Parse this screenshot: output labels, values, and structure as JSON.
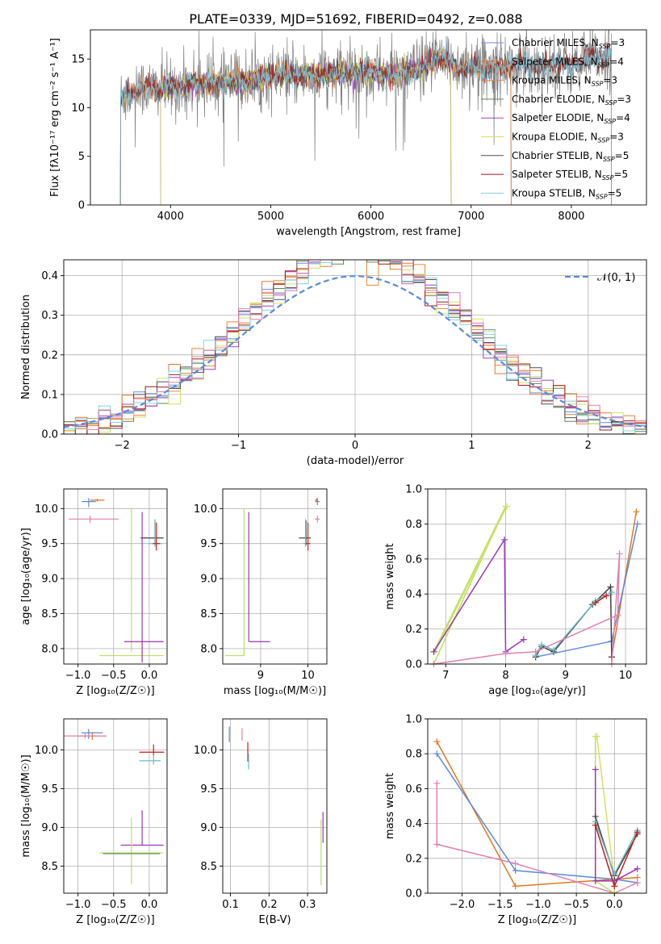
{
  "figure_title": "PLATE=0339, MJD=51692, FIBERID=0492, z=0.088",
  "colors": {
    "Chabrier MILES": "#6a8fd6",
    "Salpeter MILES": "#e07a2c",
    "Kroupa MILES": "#e8863a",
    "Chabrier ELODIE": "#5a8a5a",
    "Salpeter ELODIE": "#a040c0",
    "Kroupa ELODIE": "#d8e060",
    "Chabrier STELIB": "#505050",
    "Salpeter STELIB": "#a01818",
    "Kroupa STELIB": "#7fd3e8",
    "raw": "#7f7f7f",
    "gauss": "#5b8bd8",
    "pink": "#e080b0",
    "lime": "#b8e060",
    "purple": "#9838b8",
    "orange": "#e07820",
    "blue": "#5c8ad8",
    "dark": "#404040",
    "teal": "#6abcc0",
    "red": "#c02020"
  },
  "chart_data": [
    {
      "id": "spectrum",
      "type": "line",
      "title": "PLATE=0339, MJD=51692, FIBERID=0492, z=0.088",
      "xlabel": "wavelength [Angstrom, rest frame]",
      "ylabel": "Flux [fλ10⁻¹⁷ erg cm⁻² s⁻¹ A⁻¹]",
      "xlim": [
        3200,
        8750
      ],
      "ylim": [
        0,
        18
      ],
      "xticks": [
        4000,
        5000,
        6000,
        7000,
        8000
      ],
      "yticks": [
        0,
        5,
        10,
        15
      ],
      "grid": false,
      "legend_position": "top-right",
      "legend": [
        {
          "label": "Chabrier MILES, N",
          "sub": "SSP",
          "tail": "=3",
          "color_key": "Chabrier MILES"
        },
        {
          "label": "Salpeter MILES, N",
          "sub": "SSP",
          "tail": "=4",
          "color_key": "Salpeter MILES"
        },
        {
          "label": "Kroupa MILES, N",
          "sub": "SSP",
          "tail": "=3",
          "color_key": "Kroupa MILES"
        },
        {
          "label": "Chabrier ELODIE, N",
          "sub": "SSP",
          "tail": "=3",
          "color_key": "Chabrier ELODIE"
        },
        {
          "label": "Salpeter ELODIE, N",
          "sub": "SSP",
          "tail": "=4",
          "color_key": "Salpeter ELODIE"
        },
        {
          "label": "Kroupa ELODIE, N",
          "sub": "SSP",
          "tail": "=3",
          "color_key": "Kroupa ELODIE"
        },
        {
          "label": "Chabrier STELIB, N",
          "sub": "SSP",
          "tail": "=5",
          "color_key": "Chabrier STELIB"
        },
        {
          "label": "Salpeter STELIB, N",
          "sub": "SSP",
          "tail": "=5",
          "color_key": "Salpeter STELIB"
        },
        {
          "label": "Kroupa STELIB, N",
          "sub": "SSP",
          "tail": "=5",
          "color_key": "Kroupa STELIB"
        }
      ],
      "continuum": [
        [
          3500,
          11
        ],
        [
          3700,
          12
        ],
        [
          4000,
          12
        ],
        [
          4200,
          12.5
        ],
        [
          4500,
          12.5
        ],
        [
          4800,
          12.8
        ],
        [
          5000,
          13.2
        ],
        [
          5200,
          13.4
        ],
        [
          5500,
          13.4
        ],
        [
          5800,
          13.6
        ],
        [
          6000,
          13.5
        ],
        [
          6300,
          13.4
        ],
        [
          6500,
          14.0
        ],
        [
          6600,
          14.6
        ],
        [
          6700,
          15.2
        ],
        [
          6800,
          14.4
        ],
        [
          7000,
          14.2
        ],
        [
          7200,
          14.2
        ],
        [
          7400,
          14.4
        ],
        [
          7800,
          14.5
        ],
        [
          8000,
          14.4
        ],
        [
          8200,
          15.0
        ],
        [
          8400,
          15.5
        ]
      ],
      "model_ranges": {
        "Chabrier MILES": [
          3500,
          7400
        ],
        "Salpeter MILES": [
          3500,
          7400
        ],
        "Kroupa MILES": [
          3500,
          7400
        ],
        "Chabrier ELODIE": [
          3900,
          6800
        ],
        "Salpeter ELODIE": [
          3900,
          6800
        ],
        "Kroupa ELODIE": [
          3900,
          6800
        ],
        "Chabrier STELIB": [
          3500,
          8400
        ],
        "Salpeter STELIB": [
          3500,
          8400
        ],
        "Kroupa STELIB": [
          3500,
          8400
        ]
      },
      "data_range": [
        3500,
        8400
      ]
    },
    {
      "id": "residuals",
      "type": "bar",
      "xlabel": "(data-model)/error",
      "ylabel": "Normed distribution",
      "xlim": [
        -2.5,
        2.5
      ],
      "ylim": [
        0,
        0.44
      ],
      "xticks": [
        -2,
        -1,
        0,
        1,
        2
      ],
      "yticks": [
        0.0,
        0.1,
        0.2,
        0.3,
        0.4
      ],
      "grid": true,
      "legend_position": "top-right",
      "legend": [
        {
          "label": "𝒩(0, 1)",
          "color_key": "gauss",
          "dash": true
        }
      ],
      "bin_width": 0.1,
      "series_colors": [
        "Chabrier MILES",
        "Salpeter MILES",
        "Kroupa MILES",
        "Chabrier ELODIE",
        "Salpeter ELODIE",
        "Kroupa ELODIE",
        "Chabrier STELIB",
        "Salpeter STELIB",
        "Kroupa STELIB",
        "pink"
      ]
    },
    {
      "id": "age_vs_Z",
      "type": "scatter",
      "xlabel": "Z [log₁₀(Z/Z☉)]",
      "ylabel": "age  [log₁₀(age/yr)]",
      "xlim": [
        -1.2,
        0.25
      ],
      "ylim": [
        7.78,
        10.28
      ],
      "xticks": [
        -1.0,
        -0.5,
        0.0
      ],
      "yticks": [
        8.0,
        8.5,
        9.0,
        9.5,
        10.0
      ],
      "grid": true,
      "points": [
        {
          "x": -0.85,
          "y": 10.1,
          "xerr": [
            0.1,
            0.1
          ],
          "yerr": [
            0.08,
            0.05
          ],
          "color_key": "blue"
        },
        {
          "x": -0.73,
          "y": 10.12,
          "xerr": [
            0.1,
            0.1
          ],
          "yerr": [
            0.02,
            0.02
          ],
          "color_key": "orange"
        },
        {
          "x": -0.83,
          "y": 9.85,
          "xerr": [
            0.3,
            0.4
          ],
          "yerr": [
            0.05,
            0.05
          ],
          "color_key": "pink"
        },
        {
          "x": -0.25,
          "y": 9.55,
          "xerr": [
            0.0,
            0.0
          ],
          "yerr": [
            1.6,
            0.45
          ],
          "color_key": "lime"
        },
        {
          "x": -0.25,
          "y": 7.9,
          "xerr": [
            0.45,
            0.45
          ],
          "yerr": [
            0.0,
            0.0
          ],
          "color_key": "lime"
        },
        {
          "x": -0.1,
          "y": 8.1,
          "xerr": [
            0.25,
            0.3
          ],
          "yerr": [
            0.3,
            1.85
          ],
          "color_key": "purple"
        },
        {
          "x": 0.08,
          "y": 9.58,
          "xerr": [
            0.2,
            0.12
          ],
          "yerr": [
            0.1,
            0.25
          ],
          "color_key": "dark"
        },
        {
          "x": 0.08,
          "y": 9.5,
          "xerr": [
            0.1,
            0.1
          ],
          "yerr": [
            0.05,
            0.35
          ],
          "color_key": "teal"
        },
        {
          "x": 0.1,
          "y": 9.5,
          "xerr": [
            0.05,
            0.05
          ],
          "yerr": [
            0.1,
            0.3
          ],
          "color_key": "red"
        }
      ]
    },
    {
      "id": "age_vs_mass",
      "type": "scatter",
      "xlabel": "mass [log₁₀(M/M☉)]",
      "xlim": [
        8.2,
        10.4
      ],
      "ylim": [
        7.78,
        10.28
      ],
      "xticks": [
        9,
        10
      ],
      "yticks": [
        8.0,
        8.5,
        9.0,
        9.5,
        10.0
      ],
      "grid": true,
      "points": [
        {
          "x": 8.65,
          "y": 7.9,
          "xerr": [
            0.4,
            0.0
          ],
          "yerr": [
            0.0,
            2.1
          ],
          "color_key": "lime"
        },
        {
          "x": 8.75,
          "y": 8.1,
          "xerr": [
            0.0,
            0.45
          ],
          "yerr": [
            0.0,
            1.85
          ],
          "color_key": "purple"
        },
        {
          "x": 9.96,
          "y": 9.58,
          "xerr": [
            0.15,
            0.1
          ],
          "yerr": [
            0.1,
            0.25
          ],
          "color_key": "dark"
        },
        {
          "x": 9.95,
          "y": 9.5,
          "xerr": [
            0.05,
            0.05
          ],
          "yerr": [
            0.05,
            0.35
          ],
          "color_key": "teal"
        },
        {
          "x": 10.0,
          "y": 9.5,
          "xerr": [
            0.05,
            0.05
          ],
          "yerr": [
            0.1,
            0.3
          ],
          "color_key": "red"
        },
        {
          "x": 10.2,
          "y": 10.1,
          "xerr": [
            0.05,
            0.05
          ],
          "yerr": [
            0.05,
            0.05
          ],
          "color_key": "blue"
        },
        {
          "x": 10.18,
          "y": 10.12,
          "xerr": [
            0.03,
            0.03
          ],
          "yerr": [
            0.02,
            0.02
          ],
          "color_key": "orange"
        },
        {
          "x": 10.2,
          "y": 9.85,
          "xerr": [
            0.05,
            0.05
          ],
          "yerr": [
            0.05,
            0.05
          ],
          "color_key": "pink"
        }
      ]
    },
    {
      "id": "mass_weight_vs_age",
      "type": "line",
      "xlabel": "age  [log₁₀(age/yr)]",
      "ylabel": "mass weight",
      "xlim": [
        6.7,
        10.35
      ],
      "ylim": [
        0,
        1
      ],
      "xticks": [
        7,
        8,
        9,
        10
      ],
      "yticks": [
        0.0,
        0.2,
        0.4,
        0.6,
        0.8,
        1.0
      ],
      "grid": true,
      "series": [
        {
          "color_key": "lime",
          "x": [
            6.8,
            8.0,
            6.8
          ],
          "y": [
            0.0,
            0.9,
            0.07
          ]
        },
        {
          "color_key": "Kroupa ELODIE",
          "x": [
            6.82,
            8.02
          ],
          "y": [
            0.07,
            0.9
          ]
        },
        {
          "color_key": "purple",
          "x": [
            6.8,
            7.98,
            8.0,
            8.3
          ],
          "y": [
            0.07,
            0.71,
            0.07,
            0.14
          ]
        },
        {
          "color_key": "orange",
          "x": [
            9.77,
            10.18,
            9.77
          ],
          "y": [
            0.04,
            0.87,
            0.04
          ]
        },
        {
          "color_key": "blue",
          "x": [
            8.5,
            9.77,
            10.2
          ],
          "y": [
            0.04,
            0.13,
            0.8
          ]
        },
        {
          "color_key": "dark",
          "x": [
            8.5,
            8.6,
            8.8,
            9.45,
            9.75,
            9.77
          ],
          "y": [
            0.04,
            0.1,
            0.07,
            0.34,
            0.44,
            0.04
          ]
        },
        {
          "color_key": "teal",
          "x": [
            8.5,
            8.6,
            8.8,
            9.5,
            9.77
          ],
          "y": [
            0.05,
            0.11,
            0.08,
            0.36,
            0.41
          ]
        },
        {
          "color_key": "red",
          "x": [
            9.5,
            9.68
          ],
          "y": [
            0.35,
            0.39
          ]
        },
        {
          "color_key": "pink",
          "x": [
            6.8,
            8.0,
            8.5,
            9.87,
            9.9,
            9.77
          ],
          "y": [
            0.0,
            0.06,
            0.07,
            0.28,
            0.63,
            0.0
          ]
        }
      ]
    },
    {
      "id": "mass_vs_Z",
      "type": "scatter",
      "xlabel": "Z [log₁₀(Z/Z☉)]",
      "ylabel": "mass [log₁₀(M/M☉)]",
      "xlim": [
        -1.2,
        0.25
      ],
      "ylim": [
        8.15,
        10.4
      ],
      "xticks": [
        -1.0,
        -0.5,
        0.0
      ],
      "yticks": [
        8.5,
        9.0,
        9.5,
        10.0
      ],
      "grid": true,
      "points": [
        {
          "x": -0.85,
          "y": 10.22,
          "xerr": [
            0.1,
            0.2
          ],
          "yerr": [
            0.08,
            0.05
          ],
          "color_key": "blue"
        },
        {
          "x": -0.8,
          "y": 10.18,
          "xerr": [
            0.2,
            0.2
          ],
          "yerr": [
            0.05,
            0.05
          ],
          "color_key": "orange"
        },
        {
          "x": -0.9,
          "y": 10.18,
          "xerr": [
            0.3,
            0.3
          ],
          "yerr": [
            0.03,
            0.03
          ],
          "color_key": "pink"
        },
        {
          "x": 0.06,
          "y": 9.97,
          "xerr": [
            0.2,
            0.15
          ],
          "yerr": [
            0.05,
            0.1
          ],
          "color_key": "red"
        },
        {
          "x": 0.06,
          "y": 9.86,
          "xerr": [
            0.2,
            0.1
          ],
          "yerr": [
            0.05,
            0.08
          ],
          "color_key": "teal"
        },
        {
          "x": -0.1,
          "y": 8.77,
          "xerr": [
            0.3,
            0.3
          ],
          "yerr": [
            0.0,
            0.45
          ],
          "color_key": "purple"
        },
        {
          "x": -0.25,
          "y": 8.67,
          "xerr": [
            0.45,
            0.45
          ],
          "yerr": [
            0.4,
            0.45
          ],
          "color_key": "lime"
        },
        {
          "x": -0.25,
          "y": 8.66,
          "xerr": [
            0.4,
            0.4
          ],
          "yerr": [
            0.0,
            0.0
          ],
          "color_key": "Chabrier ELODIE"
        }
      ]
    },
    {
      "id": "mass_vs_ebv",
      "type": "scatter",
      "xlabel": "E(B-V)",
      "xlim": [
        0.08,
        0.35
      ],
      "ylim": [
        8.15,
        10.4
      ],
      "xticks": [
        0.1,
        0.2,
        0.3
      ],
      "yticks": [
        8.5,
        9.0,
        9.5,
        10.0
      ],
      "grid": true,
      "points": [
        {
          "x": 0.097,
          "y": 10.2,
          "xerr": [
            0,
            0
          ],
          "yerr": [
            0.1,
            0.1
          ],
          "color_key": "blue"
        },
        {
          "x": 0.13,
          "y": 10.2,
          "xerr": [
            0,
            0
          ],
          "yerr": [
            0.08,
            0.08
          ],
          "color_key": "pink"
        },
        {
          "x": 0.145,
          "y": 9.95,
          "xerr": [
            0,
            0
          ],
          "yerr": [
            0.1,
            0.15
          ],
          "color_key": "red"
        },
        {
          "x": 0.147,
          "y": 9.85,
          "xerr": [
            0,
            0
          ],
          "yerr": [
            0.1,
            0.1
          ],
          "color_key": "teal"
        },
        {
          "x": 0.335,
          "y": 8.7,
          "xerr": [
            0,
            0
          ],
          "yerr": [
            0.45,
            0.4
          ],
          "color_key": "lime"
        },
        {
          "x": 0.34,
          "y": 8.8,
          "xerr": [
            0,
            0
          ],
          "yerr": [
            0.0,
            0.4
          ],
          "color_key": "purple"
        }
      ]
    },
    {
      "id": "mass_weight_vs_Z",
      "type": "line",
      "xlabel": "Z [log₁₀(Z/Z☉)]",
      "ylabel": "mass weight",
      "xlim": [
        -2.45,
        0.42
      ],
      "ylim": [
        0,
        1
      ],
      "xticks": [
        -2.0,
        -1.5,
        -1.0,
        -0.5,
        0.0
      ],
      "yticks": [
        0.0,
        0.2,
        0.4,
        0.6,
        0.8,
        1.0
      ],
      "grid": true,
      "series": [
        {
          "color_key": "orange",
          "x": [
            -2.33,
            -1.3,
            0.0,
            0.3
          ],
          "y": [
            0.87,
            0.04,
            0.08,
            0.09
          ]
        },
        {
          "color_key": "blue",
          "x": [
            -2.33,
            -1.3,
            0.0,
            0.3
          ],
          "y": [
            0.8,
            0.13,
            0.08,
            0.06
          ]
        },
        {
          "color_key": "pink",
          "x": [
            -2.33,
            -2.33,
            -1.3,
            0.0,
            0.3
          ],
          "y": [
            0.63,
            0.28,
            0.17,
            0.0,
            0.06
          ]
        },
        {
          "color_key": "lime",
          "x": [
            -0.25,
            -0.25,
            0.0
          ],
          "y": [
            0.9,
            0.07,
            0.0
          ]
        },
        {
          "color_key": "Kroupa ELODIE",
          "x": [
            -0.23,
            0.0
          ],
          "y": [
            0.9,
            0.07
          ]
        },
        {
          "color_key": "purple",
          "x": [
            -0.25,
            -0.25,
            0.0,
            0.3
          ],
          "y": [
            0.71,
            0.07,
            0.07,
            0.14
          ]
        },
        {
          "color_key": "dark",
          "x": [
            -0.25,
            0.0,
            0.3
          ],
          "y": [
            0.44,
            0.1,
            0.34
          ]
        },
        {
          "color_key": "teal",
          "x": [
            -0.25,
            0.0,
            0.3
          ],
          "y": [
            0.41,
            0.11,
            0.36
          ]
        },
        {
          "color_key": "red",
          "x": [
            -0.25,
            0.0,
            0.3
          ],
          "y": [
            0.39,
            0.04,
            0.35
          ]
        }
      ]
    }
  ]
}
